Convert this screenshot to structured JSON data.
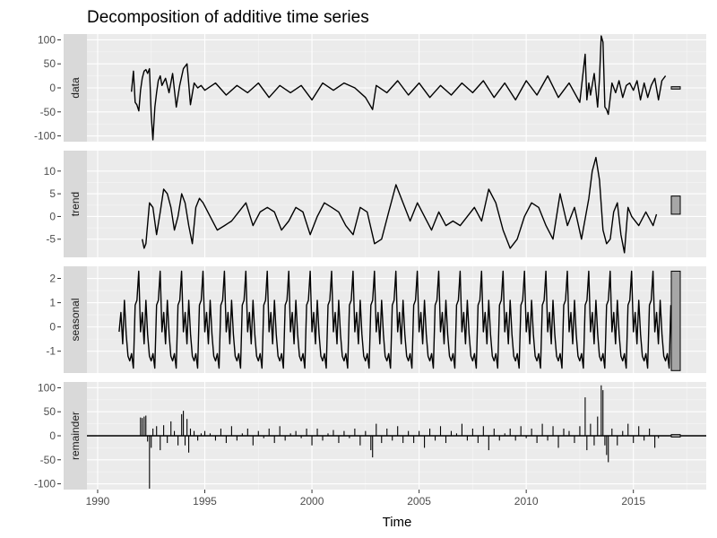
{
  "chart_data": {
    "type": "line",
    "title": "Decomposition of additive time series",
    "xlabel": "Time",
    "xlim": [
      1989.5,
      2018.4
    ],
    "x_ticks": [
      1990,
      1995,
      2000,
      2005,
      2010,
      2015
    ],
    "x_tick_labels": [
      "1990",
      "1995",
      "2000",
      "2005",
      "2010",
      "2015"
    ],
    "grid": true,
    "panels": [
      {
        "name": "data",
        "strip_label": "data",
        "kind": "line",
        "ylim": [
          -112,
          112
        ],
        "y_ticks": [
          100,
          50,
          0,
          -50,
          -100
        ],
        "y_tick_labels": [
          "100",
          "50",
          "0",
          "-50",
          "-100"
        ],
        "range_bar": [
          -2.5,
          2.5
        ],
        "x": [
          1991.58,
          1991.67,
          1991.75,
          1991.83,
          1991.92,
          1992.0,
          1992.08,
          1992.17,
          1992.25,
          1992.33,
          1992.42,
          1992.5,
          1992.58,
          1992.67,
          1992.75,
          1992.83,
          1992.92,
          1993.0,
          1993.17,
          1993.33,
          1993.5,
          1993.67,
          1993.83,
          1994.0,
          1994.17,
          1994.33,
          1994.5,
          1994.67,
          1994.83,
          1995.0,
          1995.5,
          1996.0,
          1996.5,
          1997.0,
          1997.5,
          1998.0,
          1998.5,
          1999.0,
          1999.5,
          2000.0,
          2000.5,
          2001.0,
          2001.5,
          2002.0,
          2002.5,
          2002.83,
          2003.0,
          2003.5,
          2004.0,
          2004.5,
          2005.0,
          2005.5,
          2006.0,
          2006.5,
          2007.0,
          2007.5,
          2008.0,
          2008.5,
          2009.0,
          2009.5,
          2010.0,
          2010.5,
          2011.0,
          2011.5,
          2012.0,
          2012.5,
          2012.75,
          2012.83,
          2012.92,
          2013.0,
          2013.17,
          2013.33,
          2013.42,
          2013.5,
          2013.58,
          2013.67,
          2013.75,
          2013.83,
          2014.0,
          2014.17,
          2014.33,
          2014.5,
          2014.67,
          2014.83,
          2015.0,
          2015.17,
          2015.33,
          2015.5,
          2015.67,
          2015.83,
          2016.0,
          2016.17,
          2016.33,
          2016.5
        ],
        "values": [
          -8,
          35,
          -30,
          -35,
          -48,
          -5,
          20,
          35,
          38,
          30,
          40,
          -55,
          -108,
          -40,
          -10,
          15,
          25,
          5,
          20,
          -10,
          30,
          -40,
          5,
          40,
          50,
          -35,
          10,
          0,
          5,
          -5,
          10,
          -15,
          5,
          -10,
          10,
          -20,
          5,
          -10,
          5,
          -25,
          10,
          -5,
          10,
          0,
          -20,
          -45,
          5,
          -10,
          15,
          -15,
          10,
          -20,
          5,
          -15,
          10,
          -10,
          15,
          -20,
          10,
          -25,
          15,
          -15,
          25,
          -20,
          10,
          -30,
          70,
          -25,
          10,
          -15,
          30,
          -40,
          20,
          108,
          95,
          -40,
          -45,
          -55,
          10,
          -10,
          15,
          -20,
          5,
          10,
          -5,
          15,
          -25,
          10,
          -20,
          5,
          20,
          -25,
          15,
          25
        ]
      },
      {
        "name": "trend",
        "strip_label": "trend",
        "kind": "line",
        "ylim": [
          -9,
          14.5
        ],
        "y_ticks": [
          10,
          5,
          0,
          -5
        ],
        "y_tick_labels": [
          "10",
          "5",
          "0",
          "-5"
        ],
        "range_bar": [
          0.5,
          4.5
        ],
        "x": [
          1992.08,
          1992.17,
          1992.25,
          1992.42,
          1992.58,
          1992.75,
          1992.92,
          1993.08,
          1993.25,
          1993.42,
          1993.58,
          1993.75,
          1993.92,
          1994.08,
          1994.25,
          1994.42,
          1994.58,
          1994.75,
          1994.92,
          1995.25,
          1995.58,
          1995.92,
          1996.25,
          1996.58,
          1996.92,
          1997.25,
          1997.58,
          1997.92,
          1998.25,
          1998.58,
          1998.92,
          1999.25,
          1999.58,
          1999.92,
          2000.25,
          2000.58,
          2000.92,
          2001.25,
          2001.58,
          2001.92,
          2002.25,
          2002.58,
          2002.92,
          2003.25,
          2003.58,
          2003.92,
          2004.25,
          2004.58,
          2004.92,
          2005.25,
          2005.58,
          2005.92,
          2006.25,
          2006.58,
          2006.92,
          2007.25,
          2007.58,
          2007.92,
          2008.25,
          2008.58,
          2008.92,
          2009.25,
          2009.58,
          2009.92,
          2010.25,
          2010.58,
          2010.92,
          2011.25,
          2011.58,
          2011.92,
          2012.25,
          2012.58,
          2012.92,
          2013.08,
          2013.25,
          2013.42,
          2013.58,
          2013.75,
          2013.92,
          2014.08,
          2014.25,
          2014.42,
          2014.58,
          2014.75,
          2014.92,
          2015.25,
          2015.58,
          2015.92,
          2016.08
        ],
        "values": [
          -5,
          -7,
          -6,
          3,
          2,
          -4,
          1,
          6,
          5,
          2,
          -3,
          0,
          5,
          3,
          -2,
          -6,
          2,
          4,
          3,
          0,
          -3,
          -2,
          -1,
          1,
          3,
          -2,
          1,
          2,
          1,
          -3,
          -1,
          2,
          1,
          -4,
          0,
          3,
          2,
          1,
          -2,
          -4,
          2,
          1,
          -6,
          -5,
          1,
          7,
          3,
          -1,
          3,
          0,
          -3,
          1,
          -2,
          -1,
          -2,
          0,
          2,
          -1,
          6,
          3,
          -3,
          -7,
          -5,
          0,
          3,
          2,
          -2,
          -5,
          5,
          -2,
          2,
          -5,
          4,
          10,
          13,
          8,
          -3,
          -6,
          -5,
          1,
          3,
          -4,
          -8,
          2,
          0,
          -2,
          1,
          -2,
          0.5
        ]
      },
      {
        "name": "seasonal",
        "strip_label": "seasonal",
        "kind": "line",
        "ylim": [
          -1.9,
          2.5
        ],
        "y_ticks": [
          2,
          1,
          0,
          -1
        ],
        "y_tick_labels": [
          "2",
          "1",
          "0",
          "-1"
        ],
        "range_bar": [
          -1.8,
          2.3
        ],
        "x_start": 1991.0,
        "x_end": 2016.75,
        "period_pattern": [
          -0.2,
          0.6,
          -0.7,
          1.1,
          -0.3,
          -1.2,
          -1.4,
          -1.1,
          -1.7,
          0.9,
          1.1,
          2.3
        ]
      },
      {
        "name": "remainder",
        "strip_label": "remainder",
        "kind": "bars",
        "ylim": [
          -112,
          112
        ],
        "y_ticks": [
          100,
          50,
          0,
          -50,
          -100
        ],
        "y_tick_labels": [
          "100",
          "50",
          "0",
          "-50",
          "-100"
        ],
        "range_bar": [
          -2.5,
          2.5
        ],
        "x": [
          1992.0,
          1992.08,
          1992.17,
          1992.25,
          1992.33,
          1992.42,
          1992.5,
          1992.58,
          1992.75,
          1992.92,
          1993.08,
          1993.25,
          1993.42,
          1993.58,
          1993.75,
          1993.92,
          1994.0,
          1994.08,
          1994.17,
          1994.25,
          1994.33,
          1994.5,
          1994.67,
          1994.83,
          1995.0,
          1995.25,
          1995.5,
          1995.75,
          1996.0,
          1996.25,
          1996.5,
          1996.75,
          1997.0,
          1997.25,
          1997.5,
          1997.75,
          1998.0,
          1998.25,
          1998.5,
          1998.75,
          1999.0,
          1999.25,
          1999.5,
          1999.75,
          2000.0,
          2000.25,
          2000.5,
          2000.75,
          2001.0,
          2001.25,
          2001.5,
          2001.75,
          2002.0,
          2002.25,
          2002.5,
          2002.75,
          2002.83,
          2003.0,
          2003.25,
          2003.5,
          2003.75,
          2004.0,
          2004.25,
          2004.5,
          2004.75,
          2005.0,
          2005.25,
          2005.5,
          2005.75,
          2006.0,
          2006.25,
          2006.5,
          2006.75,
          2007.0,
          2007.25,
          2007.5,
          2007.75,
          2008.0,
          2008.25,
          2008.5,
          2008.75,
          2009.0,
          2009.25,
          2009.5,
          2009.75,
          2010.0,
          2010.25,
          2010.5,
          2010.75,
          2011.0,
          2011.25,
          2011.5,
          2011.75,
          2012.0,
          2012.25,
          2012.5,
          2012.75,
          2012.83,
          2013.0,
          2013.17,
          2013.33,
          2013.5,
          2013.58,
          2013.67,
          2013.75,
          2013.83,
          2014.0,
          2014.25,
          2014.5,
          2014.75,
          2015.0,
          2015.25,
          2015.5,
          2015.75,
          2016.0,
          2016.17
        ],
        "values": [
          38,
          37,
          40,
          42,
          -12,
          -110,
          -25,
          15,
          20,
          -30,
          22,
          -15,
          30,
          10,
          -20,
          45,
          52,
          -20,
          35,
          -35,
          15,
          10,
          -10,
          5,
          10,
          5,
          -10,
          15,
          -15,
          20,
          -10,
          5,
          15,
          -20,
          10,
          -5,
          15,
          -15,
          20,
          -10,
          5,
          10,
          -5,
          15,
          -20,
          15,
          -10,
          5,
          12,
          -15,
          10,
          -5,
          15,
          -20,
          10,
          -30,
          -45,
          25,
          -15,
          15,
          -10,
          20,
          -15,
          10,
          -15,
          10,
          -25,
          15,
          -10,
          20,
          -15,
          10,
          5,
          25,
          -10,
          15,
          -15,
          20,
          -30,
          15,
          -10,
          5,
          15,
          -10,
          20,
          -5,
          15,
          -15,
          25,
          -10,
          20,
          -25,
          15,
          10,
          -15,
          20,
          80,
          -30,
          25,
          -20,
          40,
          105,
          95,
          -20,
          -40,
          -55,
          15,
          -20,
          10,
          25,
          -15,
          20,
          -10,
          15,
          -25,
          -5
        ]
      }
    ]
  }
}
